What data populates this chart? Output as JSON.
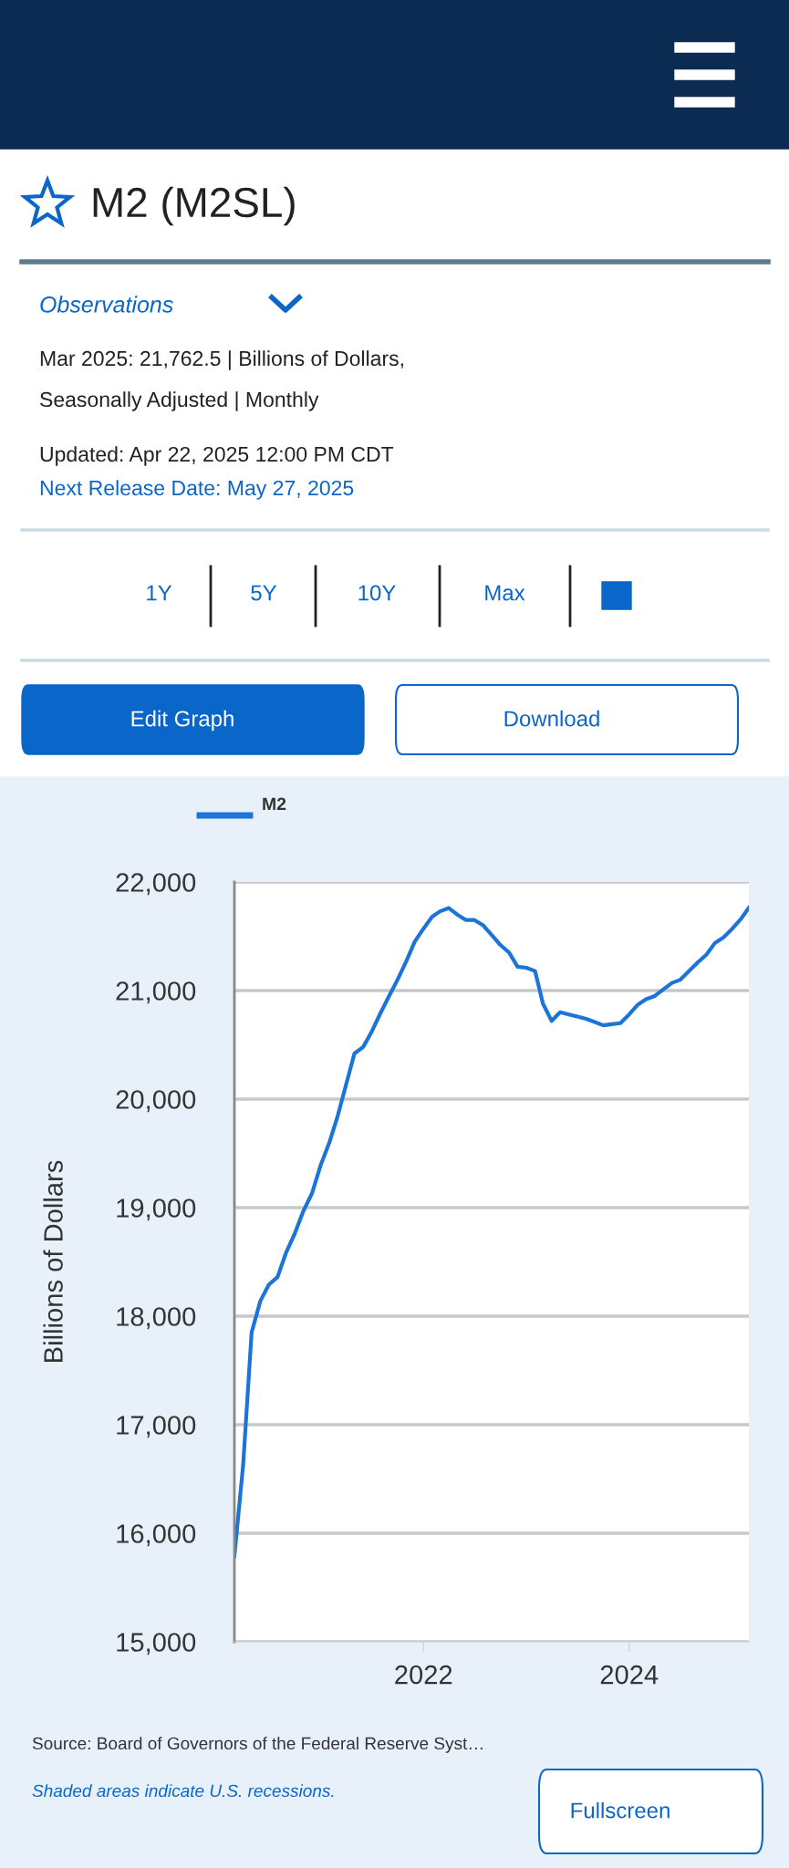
{
  "chart_data": {
    "type": "line",
    "title": "M2 (M2SL)",
    "ylabel": "Billions of Dollars",
    "annotations": [
      "Observations",
      "Mar 2025: 21,762.5 | Billions of Dollars,",
      "Seasonally Adjusted | Monthly",
      "Updated: Apr 22, 2025 12:00 PM CDT",
      "Next Release Date: May 27, 2025",
      "1Y",
      "5Y",
      "10Y",
      "Max",
      "Edit Graph",
      "Download",
      "Source: Board of Governors of the Federal Reserve Syst…",
      "Shaded areas indicate U.S. recessions.",
      "Fullscreen"
    ],
    "x": [
      "2020-03",
      "2020-04",
      "2020-05",
      "2020-06",
      "2020-07",
      "2020-08",
      "2020-09",
      "2020-10",
      "2020-11",
      "2020-12",
      "2021-01",
      "2021-02",
      "2021-03",
      "2021-04",
      "2021-05",
      "2021-06",
      "2021-07",
      "2021-08",
      "2021-09",
      "2021-10",
      "2021-11",
      "2021-12",
      "2022-01",
      "2022-02",
      "2022-03",
      "2022-04",
      "2022-05",
      "2022-06",
      "2022-07",
      "2022-08",
      "2022-09",
      "2022-10",
      "2022-11",
      "2022-12",
      "2023-01",
      "2023-02",
      "2023-03",
      "2023-04",
      "2023-05",
      "2023-06",
      "2023-07",
      "2023-08",
      "2023-09",
      "2023-10",
      "2023-11",
      "2023-12",
      "2024-01",
      "2024-02",
      "2024-03",
      "2024-04",
      "2024-05",
      "2024-06",
      "2024-07",
      "2024-08",
      "2024-09",
      "2024-10",
      "2024-11",
      "2024-12",
      "2025-01",
      "2025-02",
      "2025-03"
    ],
    "series": [
      {
        "name": "M2",
        "color": "#1b74d8",
        "values": [
          15790,
          16630,
          17850,
          18140,
          18290,
          18360,
          18590,
          18760,
          18970,
          19130,
          19390,
          19600,
          19830,
          20130,
          20420,
          20480,
          20620,
          20790,
          20950,
          21100,
          21270,
          21450,
          21570,
          21680,
          21730,
          21760,
          21700,
          21650,
          21650,
          21600,
          21510,
          21420,
          21350,
          21220,
          21210,
          21180,
          20880,
          20720,
          20800,
          20780,
          20760,
          20740,
          20710,
          20680,
          20690,
          20700,
          20780,
          20870,
          20920,
          20950,
          21010,
          21070,
          21100,
          21180,
          21260,
          21330,
          21440,
          21490,
          21570,
          21660,
          21762.5
        ]
      }
    ],
    "xlim": [
      "2020-03",
      "2025-03"
    ],
    "xticks": [
      "2022",
      "2024"
    ],
    "ylim": [
      15000,
      22000
    ],
    "yticks": [
      {
        "value": 15000,
        "label": "15,000"
      },
      {
        "value": 16000,
        "label": "16,000"
      },
      {
        "value": 17000,
        "label": "17,000"
      },
      {
        "value": 18000,
        "label": "18,000"
      },
      {
        "value": 19000,
        "label": "19,000"
      },
      {
        "value": 20000,
        "label": "20,000"
      },
      {
        "value": 21000,
        "label": "21,000"
      },
      {
        "value": 22000,
        "label": "22,000"
      }
    ],
    "grid": "y",
    "legend": "top left"
  }
}
